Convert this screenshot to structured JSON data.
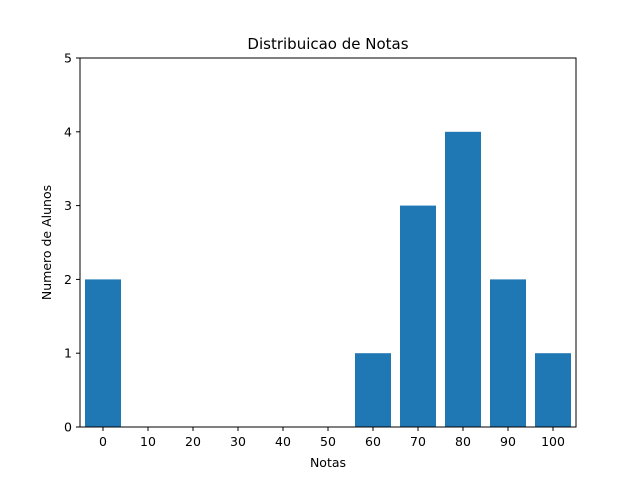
{
  "chart_data": {
    "type": "bar",
    "title": "Distribuicao de Notas",
    "xlabel": "Notas",
    "ylabel": "Numero de Alunos",
    "categories": [
      0,
      10,
      20,
      30,
      40,
      50,
      60,
      70,
      80,
      90,
      100
    ],
    "values": [
      2,
      0,
      0,
      0,
      0,
      0,
      1,
      3,
      4,
      2,
      1
    ],
    "ylim": [
      0,
      5
    ],
    "yticks": [
      0,
      1,
      2,
      3,
      4,
      5
    ],
    "bar_color": "#1f77b4",
    "grid": false,
    "legend": false
  }
}
